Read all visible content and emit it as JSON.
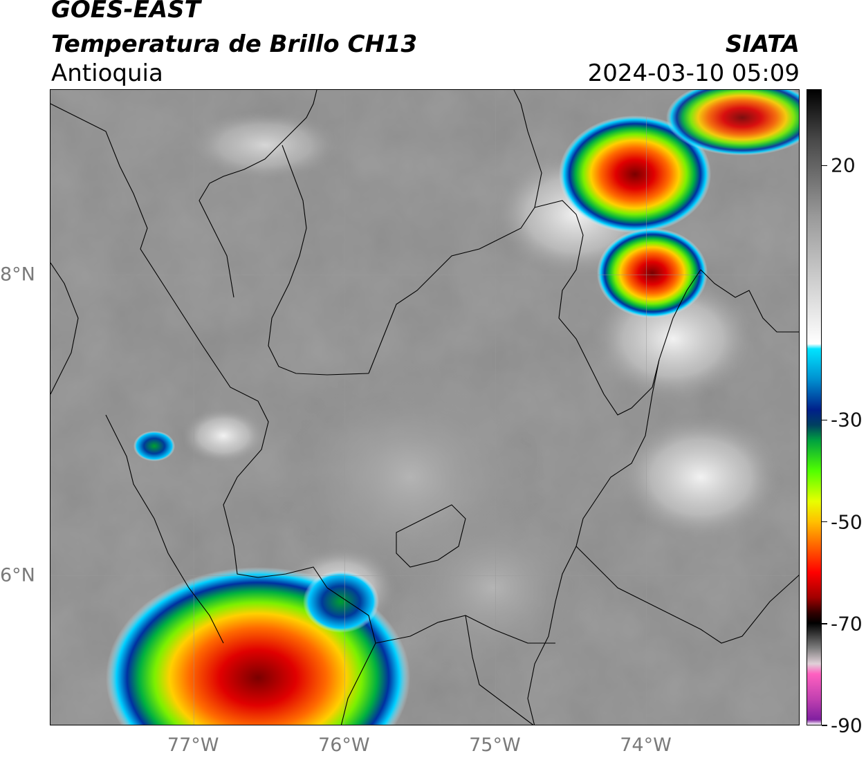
{
  "header": {
    "title_line1": "GOES-EAST",
    "title_line2": "Temperatura de Brillo CH13",
    "region": "Antioquia",
    "organization": "SIATA",
    "datetime": "2024-03-10 05:09"
  },
  "axes": {
    "x_ticks": [
      {
        "label": "77°W",
        "lon": -77
      },
      {
        "label": "76°W",
        "lon": -76
      },
      {
        "label": "75°W",
        "lon": -75
      },
      {
        "label": "74°W",
        "lon": -74
      }
    ],
    "y_ticks": [
      {
        "label": "8°N",
        "lat": 8
      },
      {
        "label": "6°N",
        "lat": 6
      }
    ],
    "lon_range": [
      -77.95,
      -72.98
    ],
    "lat_range": [
      5.0,
      9.23
    ],
    "grid": true
  },
  "colorbar": {
    "range": [
      -90,
      35
    ],
    "ticks": [
      {
        "label": "20",
        "value": 20
      },
      {
        "label": "-30",
        "value": -30
      },
      {
        "label": "-50",
        "value": -50
      },
      {
        "label": "-70",
        "value": -70
      },
      {
        "label": "-90",
        "value": -90
      }
    ]
  },
  "map": {
    "variable": "Brightness temperature (°C)",
    "storm_cells": [
      {
        "name": "cell-northeast-upper",
        "lon": -74.1,
        "lat": 8.72,
        "min_temp": -65
      },
      {
        "name": "cell-northeast-lower",
        "lon": -73.99,
        "lat": 8.02,
        "min_temp": -65
      },
      {
        "name": "cell-far-northeast",
        "lon": -73.6,
        "lat": 9.05,
        "min_temp": -50
      },
      {
        "name": "cell-west-small",
        "lon": -77.25,
        "lat": 6.85,
        "min_temp": -30
      },
      {
        "name": "cell-southwest-large",
        "lon": -76.6,
        "lat": 5.4,
        "min_temp": -68
      }
    ]
  }
}
